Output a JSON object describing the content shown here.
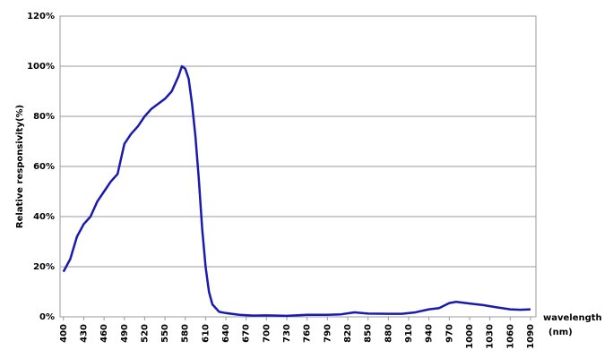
{
  "chart_data": {
    "type": "line",
    "ylabel": "Relative responsivity(%)",
    "xlabel": "wavelength",
    "xunit": "(nm)",
    "x": [
      400,
      410,
      420,
      430,
      440,
      450,
      460,
      470,
      480,
      490,
      500,
      510,
      520,
      530,
      540,
      550,
      560,
      570,
      575,
      580,
      585,
      590,
      595,
      600,
      605,
      610,
      615,
      620,
      630,
      640,
      660,
      680,
      700,
      730,
      760,
      790,
      810,
      830,
      850,
      880,
      900,
      920,
      940,
      955,
      970,
      980,
      1000,
      1020,
      1040,
      1060,
      1075,
      1090
    ],
    "series": [
      {
        "color": "#1a1ab0",
        "values": [
          18,
          23,
          32,
          37,
          40,
          46,
          50,
          54,
          57,
          69,
          73,
          76,
          80,
          83,
          85,
          87,
          90,
          96,
          100,
          99,
          95,
          85,
          72,
          55,
          35,
          20,
          10,
          5,
          2,
          1.5,
          0.8,
          0.5,
          0.6,
          0.4,
          0.8,
          0.8,
          1,
          1.8,
          1.3,
          1.2,
          1.2,
          1.8,
          3,
          3.5,
          5.5,
          6,
          5.3,
          4.7,
          3.8,
          3,
          2.8,
          3
        ]
      }
    ],
    "xlim": [
      395,
      1098
    ],
    "xticks": [
      400,
      430,
      460,
      490,
      520,
      550,
      580,
      610,
      640,
      670,
      700,
      730,
      760,
      790,
      820,
      850,
      880,
      910,
      940,
      970,
      1000,
      1030,
      1060,
      1090
    ],
    "ylim": [
      0,
      120
    ],
    "yticks": [
      {
        "value": 0,
        "label": "0%"
      },
      {
        "value": 20,
        "label": "20%"
      },
      {
        "value": 40,
        "label": "40%"
      },
      {
        "value": 60,
        "label": "60%"
      },
      {
        "value": 80,
        "label": "80%"
      },
      {
        "value": 100,
        "label": "100%"
      },
      {
        "value": 120,
        "label": "120%"
      }
    ],
    "grid": true
  }
}
